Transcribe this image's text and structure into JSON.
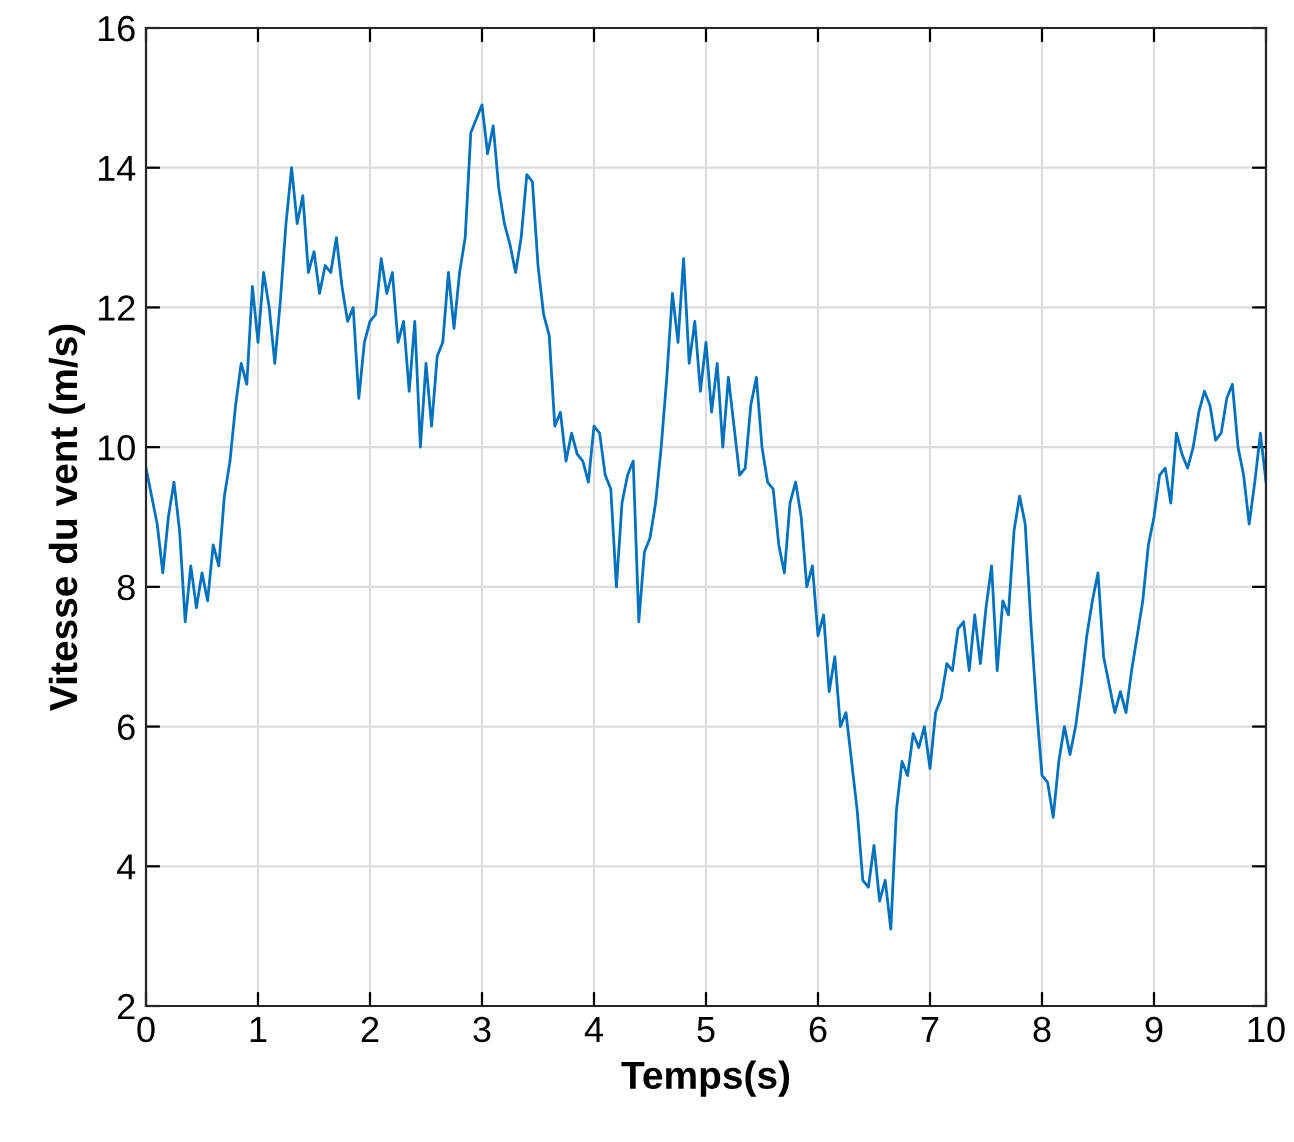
{
  "chart_data": {
    "type": "line",
    "xlabel": "Temps(s)",
    "ylabel": "Vitesse du vent (m/s)",
    "xlim": [
      0,
      10
    ],
    "ylim": [
      2,
      16
    ],
    "xticks": [
      0,
      1,
      2,
      3,
      4,
      5,
      6,
      7,
      8,
      9,
      10
    ],
    "yticks": [
      2,
      4,
      6,
      8,
      10,
      12,
      14,
      16
    ],
    "grid": true,
    "x": [
      0,
      0.05,
      0.1,
      0.15,
      0.2,
      0.25,
      0.3,
      0.35,
      0.4,
      0.45,
      0.5,
      0.55,
      0.6,
      0.65,
      0.7,
      0.75,
      0.8,
      0.85,
      0.9,
      0.95,
      1.0,
      1.05,
      1.1,
      1.15,
      1.2,
      1.25,
      1.3,
      1.35,
      1.4,
      1.45,
      1.5,
      1.55,
      1.6,
      1.65,
      1.7,
      1.75,
      1.8,
      1.85,
      1.9,
      1.95,
      2.0,
      2.05,
      2.1,
      2.15,
      2.2,
      2.25,
      2.3,
      2.35,
      2.4,
      2.45,
      2.5,
      2.55,
      2.6,
      2.65,
      2.7,
      2.75,
      2.8,
      2.85,
      2.9,
      2.95,
      3.0,
      3.05,
      3.1,
      3.15,
      3.2,
      3.25,
      3.3,
      3.35,
      3.4,
      3.45,
      3.5,
      3.55,
      3.6,
      3.65,
      3.7,
      3.75,
      3.8,
      3.85,
      3.9,
      3.95,
      4.0,
      4.05,
      4.1,
      4.15,
      4.2,
      4.25,
      4.3,
      4.35,
      4.4,
      4.45,
      4.5,
      4.55,
      4.6,
      4.65,
      4.7,
      4.75,
      4.8,
      4.85,
      4.9,
      4.95,
      5.0,
      5.05,
      5.1,
      5.15,
      5.2,
      5.25,
      5.3,
      5.35,
      5.4,
      5.45,
      5.5,
      5.55,
      5.6,
      5.65,
      5.7,
      5.75,
      5.8,
      5.85,
      5.9,
      5.95,
      6.0,
      6.05,
      6.1,
      6.15,
      6.2,
      6.25,
      6.3,
      6.35,
      6.4,
      6.45,
      6.5,
      6.55,
      6.6,
      6.65,
      6.7,
      6.75,
      6.8,
      6.85,
      6.9,
      6.95,
      7.0,
      7.05,
      7.1,
      7.15,
      7.2,
      7.25,
      7.3,
      7.35,
      7.4,
      7.45,
      7.5,
      7.55,
      7.6,
      7.65,
      7.7,
      7.75,
      7.8,
      7.85,
      7.9,
      7.95,
      8.0,
      8.05,
      8.1,
      8.15,
      8.2,
      8.25,
      8.3,
      8.35,
      8.4,
      8.45,
      8.5,
      8.55,
      8.6,
      8.65,
      8.7,
      8.75,
      8.8,
      8.85,
      8.9,
      8.95,
      9.0,
      9.05,
      9.1,
      9.15,
      9.2,
      9.25,
      9.3,
      9.35,
      9.4,
      9.45,
      9.5,
      9.55,
      9.6,
      9.65,
      9.7,
      9.75,
      9.8,
      9.85,
      9.9,
      9.95,
      10.0
    ],
    "series": [
      {
        "color": "#0072bd",
        "values": [
          9.7,
          9.3,
          8.9,
          8.2,
          9.0,
          9.5,
          8.8,
          7.5,
          8.3,
          7.7,
          8.2,
          7.8,
          8.6,
          8.3,
          9.3,
          9.8,
          10.6,
          11.2,
          10.9,
          12.3,
          11.5,
          12.5,
          12.0,
          11.2,
          12.1,
          13.2,
          14.0,
          13.2,
          13.6,
          12.5,
          12.8,
          12.2,
          12.6,
          12.5,
          13.0,
          12.3,
          11.8,
          12.0,
          10.7,
          11.5,
          11.8,
          11.9,
          12.7,
          12.2,
          12.5,
          11.5,
          11.8,
          10.8,
          11.8,
          10.0,
          11.2,
          10.3,
          11.3,
          11.5,
          12.5,
          11.7,
          12.5,
          13.0,
          14.5,
          14.7,
          14.9,
          14.2,
          14.6,
          13.7,
          13.2,
          12.9,
          12.5,
          13.0,
          13.9,
          13.8,
          12.6,
          11.9,
          11.6,
          10.3,
          10.5,
          9.8,
          10.2,
          9.9,
          9.8,
          9.5,
          10.3,
          10.2,
          9.6,
          9.4,
          8.0,
          9.2,
          9.6,
          9.8,
          7.5,
          8.5,
          8.7,
          9.2,
          10.0,
          11.0,
          12.2,
          11.5,
          12.7,
          11.2,
          11.8,
          10.8,
          11.5,
          10.5,
          11.2,
          10.0,
          11.0,
          10.3,
          9.6,
          9.7,
          10.6,
          11.0,
          10.0,
          9.5,
          9.4,
          8.6,
          8.2,
          9.2,
          9.5,
          9.0,
          8.0,
          8.3,
          7.3,
          7.6,
          6.5,
          7.0,
          6.0,
          6.2,
          5.5,
          4.8,
          3.8,
          3.7,
          4.3,
          3.5,
          3.8,
          3.1,
          4.8,
          5.5,
          5.3,
          5.9,
          5.7,
          6.0,
          5.4,
          6.2,
          6.4,
          6.9,
          6.8,
          7.4,
          7.5,
          6.8,
          7.6,
          6.9,
          7.7,
          8.3,
          6.8,
          7.8,
          7.6,
          8.8,
          9.3,
          8.9,
          7.5,
          6.3,
          5.3,
          5.2,
          4.7,
          5.5,
          6.0,
          5.6,
          6.0,
          6.6,
          7.3,
          7.8,
          8.2,
          7.0,
          6.6,
          6.2,
          6.5,
          6.2,
          6.8,
          7.3,
          7.8,
          8.6,
          9.0,
          9.6,
          9.7,
          9.2,
          10.2,
          9.9,
          9.7,
          10.0,
          10.5,
          10.8,
          10.6,
          10.1,
          10.2,
          10.7,
          10.9,
          10.0,
          9.6,
          8.9,
          9.5,
          10.2,
          9.5
        ]
      }
    ]
  }
}
